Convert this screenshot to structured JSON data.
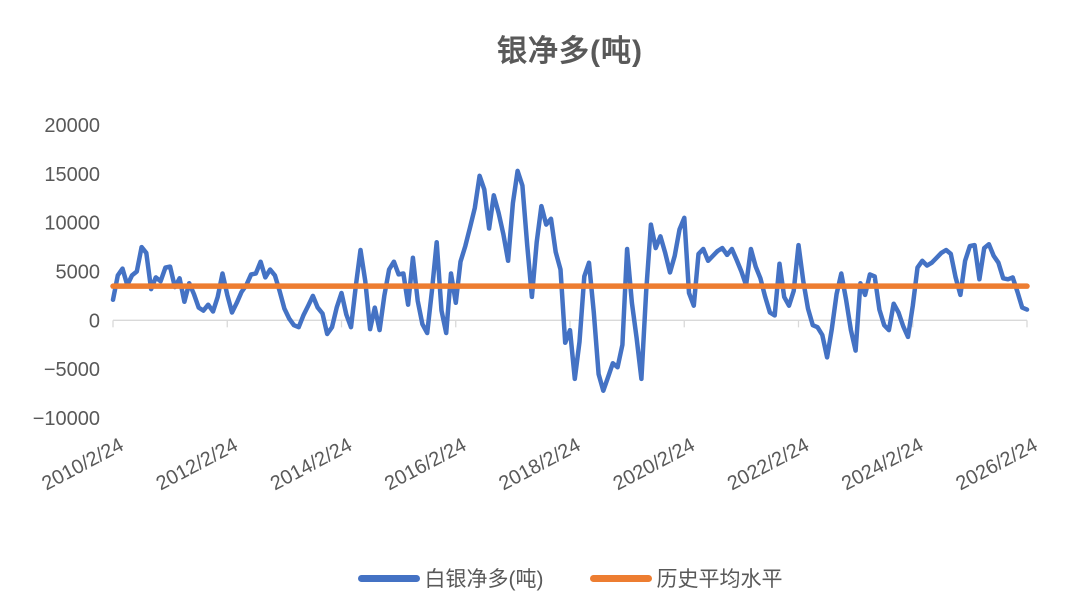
{
  "chart_data": {
    "type": "line",
    "title": "银净多(吨)",
    "xlabel": "",
    "ylabel": "",
    "x_start": "2010/2/24",
    "x_step": "monthly",
    "x_tick_labels": [
      "2010/2/24",
      "2012/2/24",
      "2014/2/24",
      "2016/2/24",
      "2018/2/24",
      "2020/2/24",
      "2022/2/24",
      "2024/2/24",
      "2026/2/24"
    ],
    "x_tick_indices": [
      0,
      24,
      48,
      72,
      96,
      120,
      144,
      168,
      192
    ],
    "y_ticks": [
      20000,
      15000,
      10000,
      5000,
      0,
      -5000,
      -10000
    ],
    "ylim": [
      -10000,
      20000
    ],
    "grid": false,
    "legend_position": "bottom",
    "axis_color": "#D9D9D9",
    "label_color": "#595959",
    "series": [
      {
        "name": "白银净多(吨)",
        "color": "#4472C4",
        "values": [
          2100,
          4600,
          5300,
          3600,
          4600,
          5000,
          7500,
          6900,
          3200,
          4400,
          4000,
          5400,
          5500,
          3400,
          4300,
          1900,
          3800,
          2700,
          1300,
          1000,
          1600,
          900,
          2400,
          4800,
          2600,
          800,
          1800,
          2900,
          3600,
          4700,
          4800,
          6000,
          4400,
          5200,
          4600,
          3000,
          1200,
          200,
          -500,
          -700,
          500,
          1500,
          2500,
          1300,
          700,
          -1400,
          -700,
          1300,
          2800,
          600,
          -700,
          3500,
          7200,
          4000,
          -900,
          1300,
          -1000,
          2500,
          5200,
          6000,
          4700,
          4800,
          1600,
          6400,
          2000,
          -400,
          -1300,
          3000,
          8000,
          1000,
          -1300,
          4800,
          1800,
          6000,
          7600,
          9500,
          11500,
          14800,
          13400,
          9400,
          12800,
          11000,
          8800,
          6100,
          12000,
          15300,
          13800,
          7700,
          2400,
          8000,
          11700,
          9800,
          10400,
          7000,
          5200,
          -2300,
          -1000,
          -6000,
          -2200,
          4500,
          5900,
          800,
          -5500,
          -7200,
          -5800,
          -4400,
          -4800,
          -2500,
          7300,
          1800,
          -1800,
          -6000,
          3000,
          9800,
          7400,
          8600,
          6900,
          4900,
          6600,
          9300,
          10500,
          2800,
          1500,
          6800,
          7300,
          6100,
          6600,
          7100,
          7400,
          6700,
          7300,
          6200,
          5000,
          3600,
          7300,
          5500,
          4300,
          2400,
          800,
          500,
          5800,
          2400,
          1500,
          3000,
          7700,
          4000,
          1200,
          -500,
          -700,
          -1500,
          -3800,
          -900,
          2700,
          4800,
          2100,
          -1000,
          -3100,
          3800,
          2600,
          4700,
          4500,
          1100,
          -500,
          -1000,
          1700,
          800,
          -600,
          -1700,
          1500,
          5400,
          6100,
          5600,
          5900,
          6400,
          6900,
          7200,
          6800,
          4400,
          2600,
          6100,
          7600,
          7700,
          4200,
          7400,
          7800,
          6600,
          5900,
          4300,
          4200,
          4400,
          2900,
          1300,
          1100
        ]
      },
      {
        "name": "历史平均水平",
        "color": "#ED7D31",
        "type": "constant",
        "value": 3500
      }
    ]
  }
}
